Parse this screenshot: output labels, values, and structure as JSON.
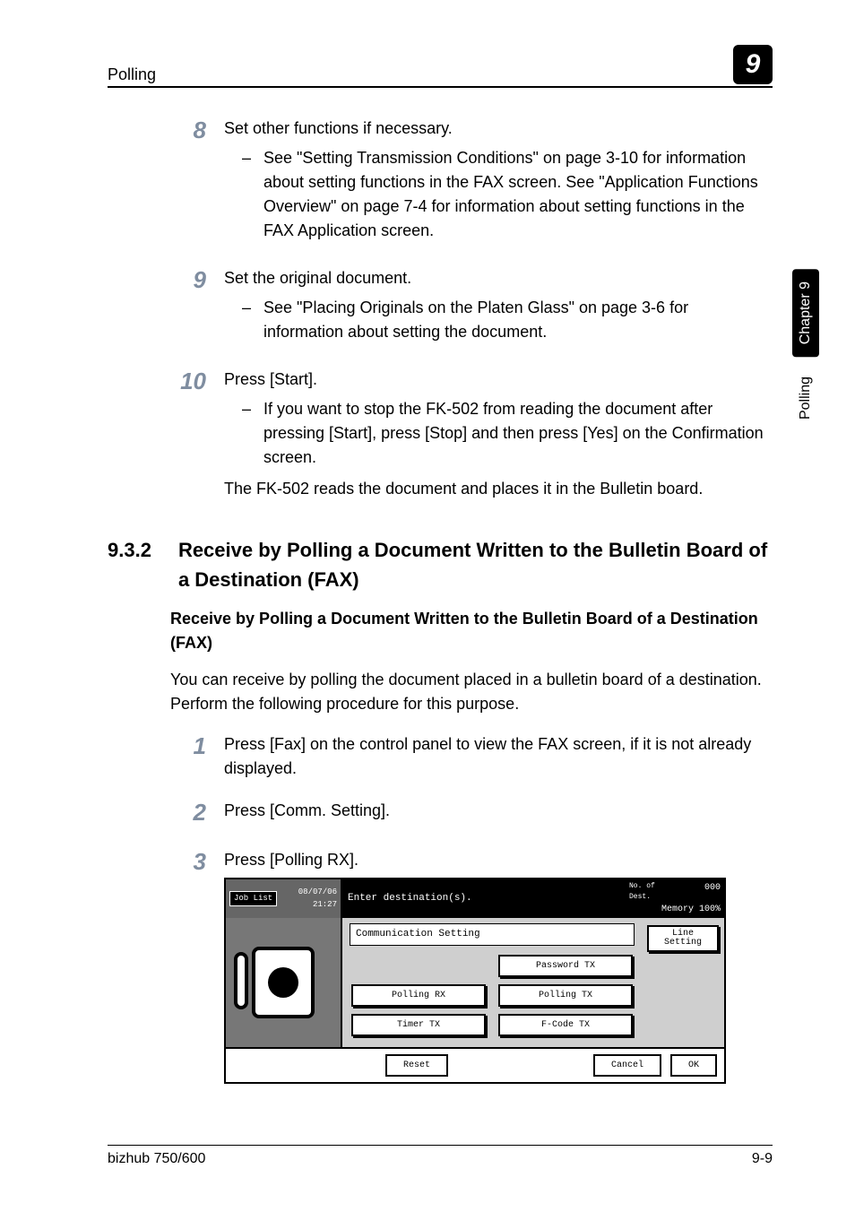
{
  "header": {
    "section_label": "Polling",
    "chapter_num_box": "9"
  },
  "sidebar": {
    "chapter_box": "Chapter 9",
    "section_label": "Polling"
  },
  "steps_a": [
    {
      "num": "8",
      "lead": "Set other functions if necessary.",
      "bullets": [
        "See \"Setting Transmission Conditions\" on page 3-10 for information about setting functions in the FAX screen. See \"Application Functions Overview\" on page 7-4 for information about setting functions in the FAX Application screen."
      ]
    },
    {
      "num": "9",
      "lead": "Set the original document.",
      "bullets": [
        "See \"Placing Originals on the Platen Glass\" on page 3-6 for information about setting the document."
      ]
    },
    {
      "num": "10",
      "lead": "Press [Start].",
      "bullets": [
        "If you want to stop the FK-502 from reading the document after pressing [Start], press [Stop] and then press [Yes] on the Confirmation screen."
      ],
      "after": "The FK-502 reads the document and places it in the Bulletin board."
    }
  ],
  "h2": {
    "num": "9.3.2",
    "title": "Receive by Polling a Document Written to the Bulletin Board of a Destination (FAX)"
  },
  "h3": "Receive by Polling a Document Written to the Bulletin Board of a Destination (FAX)",
  "intro": "You can receive by polling the document placed in a bulletin board of a destination. Perform the following procedure for this purpose.",
  "steps_b": [
    {
      "num": "1",
      "lead": "Press [Fax] on the control panel to view the FAX screen, if it is not already displayed."
    },
    {
      "num": "2",
      "lead": "Press [Comm. Setting]."
    },
    {
      "num": "3",
      "lead": "Press [Polling RX]."
    }
  ],
  "device": {
    "top": {
      "job_list": "Job\nList",
      "datetime": "08/07/06\n21:27",
      "prompt": "Enter destination(s).",
      "dest_label": "No. of\nDest.",
      "dest_count": "000",
      "memory": "Memory 100%"
    },
    "main_title": "Communication Setting",
    "grid": {
      "r1c1": "",
      "r1c2": "Password TX",
      "r2c1": "Polling RX",
      "r2c2": "Polling TX",
      "r3c1": "Timer TX",
      "r3c2": "F-Code TX"
    },
    "side": {
      "line_setting": "Line\nSetting"
    },
    "footer": {
      "reset": "Reset",
      "cancel": "Cancel",
      "ok": "OK"
    }
  },
  "footer": {
    "left": "bizhub 750/600",
    "right": "9-9"
  },
  "colors": {
    "step_num": "#7f8da0",
    "panel_grey": "#cfcfcf",
    "panel_dark": "#777777"
  }
}
